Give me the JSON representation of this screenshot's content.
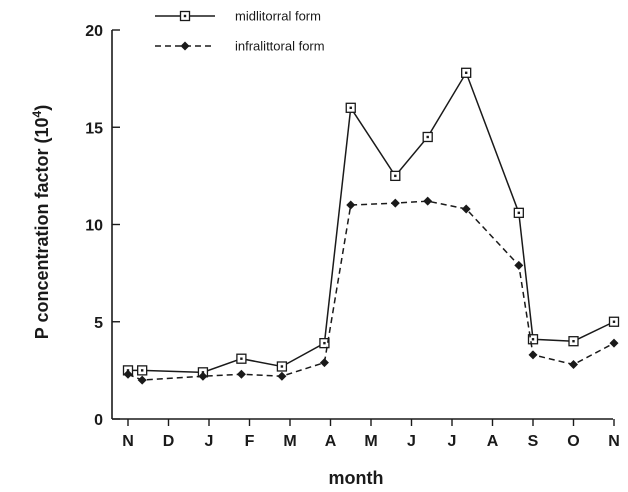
{
  "chart_data": {
    "type": "line",
    "categories": [
      "N",
      "D",
      "J",
      "F",
      "M",
      "A",
      "M",
      "J",
      "J",
      "A",
      "S",
      "O",
      "N"
    ],
    "xlabel": "month",
    "ylabel": "P concentration factor (10",
    "ylabel_superscript": "4",
    "ylabel_suffix": ")",
    "ylim": [
      0,
      20
    ],
    "yticks": [
      0,
      5,
      10,
      15,
      20
    ],
    "grid": false,
    "legend_position": "top-left",
    "series": [
      {
        "name": "midlitorral form",
        "marker": "open-square",
        "line_style": "solid",
        "color": "#1a1a1a",
        "points": [
          {
            "x": 0.0,
            "y": 2.5
          },
          {
            "x": 0.35,
            "y": 2.5
          },
          {
            "x": 1.85,
            "y": 2.4
          },
          {
            "x": 2.8,
            "y": 3.1
          },
          {
            "x": 3.8,
            "y": 2.7
          },
          {
            "x": 4.85,
            "y": 3.9
          },
          {
            "x": 5.5,
            "y": 16.0
          },
          {
            "x": 6.6,
            "y": 12.5
          },
          {
            "x": 7.4,
            "y": 14.5
          },
          {
            "x": 8.35,
            "y": 17.8
          },
          {
            "x": 9.65,
            "y": 10.6
          },
          {
            "x": 10.0,
            "y": 4.1
          },
          {
            "x": 11.0,
            "y": 4.0
          },
          {
            "x": 12.0,
            "y": 5.0
          }
        ]
      },
      {
        "name": "infralittoral form",
        "marker": "filled-diamond",
        "line_style": "dashed",
        "color": "#1a1a1a",
        "points": [
          {
            "x": 0.0,
            "y": 2.3
          },
          {
            "x": 0.35,
            "y": 2.0
          },
          {
            "x": 1.85,
            "y": 2.2
          },
          {
            "x": 2.8,
            "y": 2.3
          },
          {
            "x": 3.8,
            "y": 2.2
          },
          {
            "x": 4.85,
            "y": 2.9
          },
          {
            "x": 5.5,
            "y": 11.0
          },
          {
            "x": 6.6,
            "y": 11.1
          },
          {
            "x": 7.4,
            "y": 11.2
          },
          {
            "x": 8.35,
            "y": 10.8
          },
          {
            "x": 9.65,
            "y": 7.9
          },
          {
            "x": 10.0,
            "y": 3.3
          },
          {
            "x": 11.0,
            "y": 2.8
          },
          {
            "x": 12.0,
            "y": 3.9
          }
        ]
      }
    ]
  }
}
